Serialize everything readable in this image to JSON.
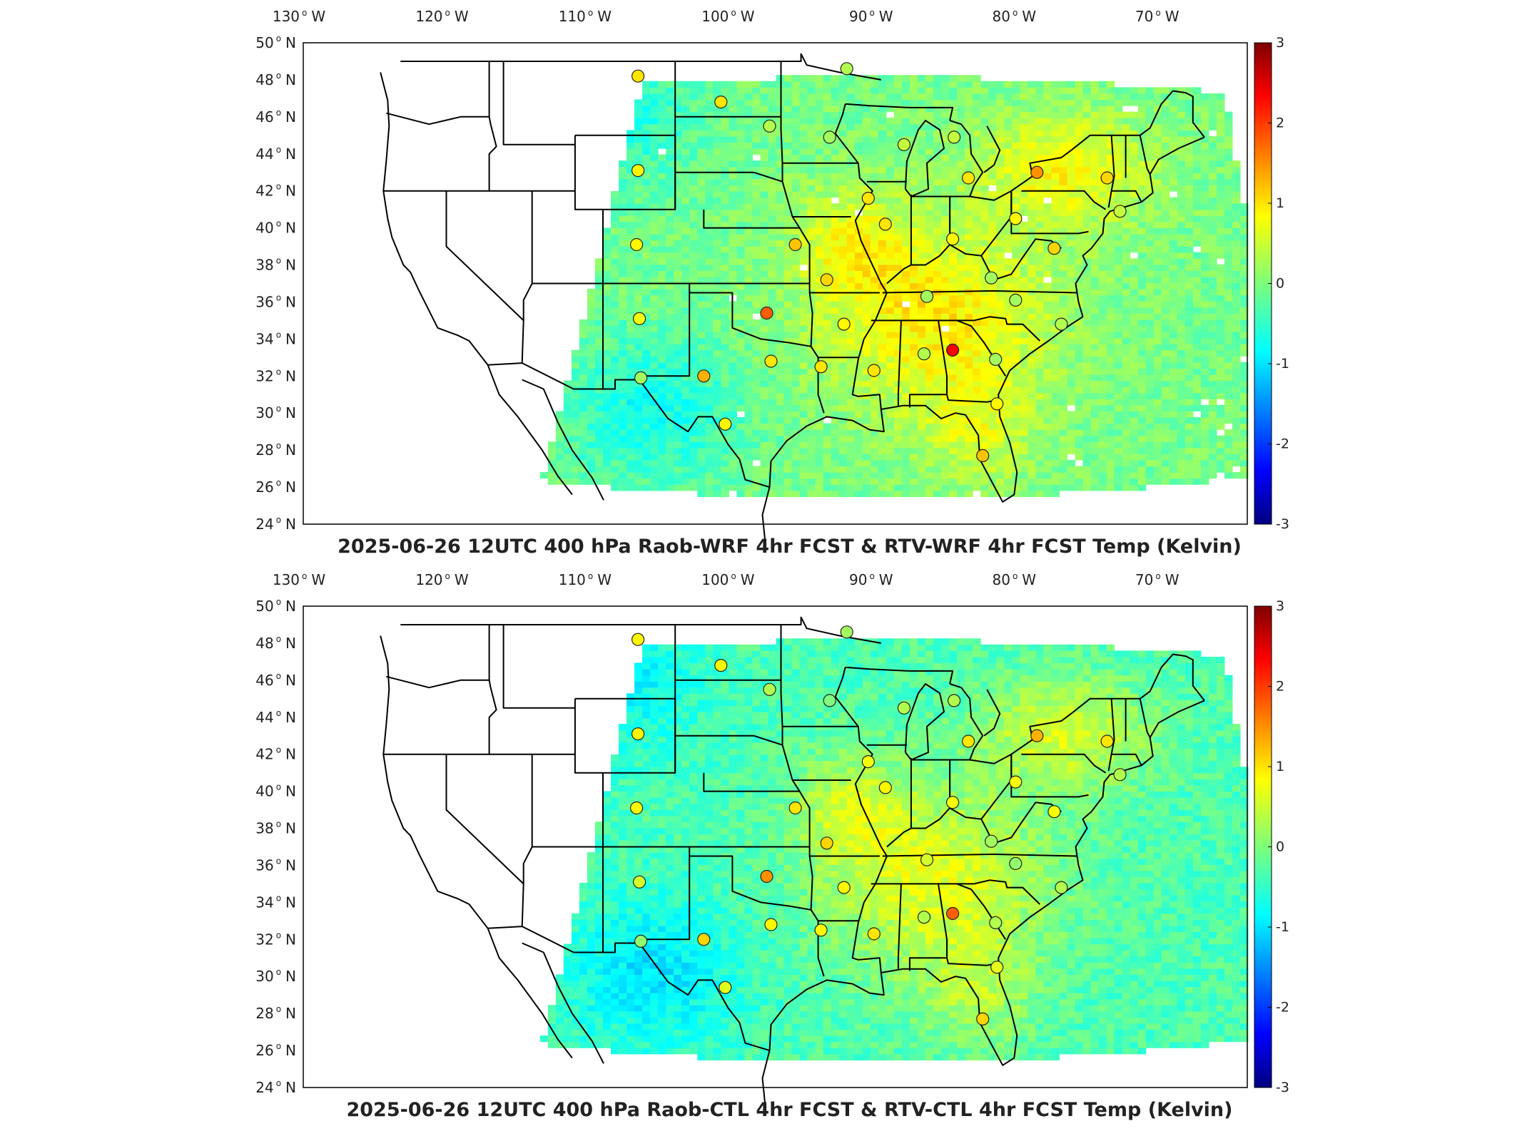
{
  "panels": [
    {
      "id": "top",
      "title": "2025-06-26 12UTC 400 hPa Raob-WRF 4hr FCST & RTV-WRF 4hr FCST Temp (Kelvin)",
      "pattern_bias": 0.25,
      "stations": [
        {
          "lon": -106.6,
          "lat": 48.2,
          "v": 0.9
        },
        {
          "lon": -100.8,
          "lat": 46.8,
          "v": 0.9
        },
        {
          "lon": -97.4,
          "lat": 45.5,
          "v": 0.3
        },
        {
          "lon": -93.2,
          "lat": 44.9,
          "v": 0.2
        },
        {
          "lon": -92.0,
          "lat": 48.6,
          "v": 0.3
        },
        {
          "lon": -106.6,
          "lat": 43.1,
          "v": 0.8
        },
        {
          "lon": -106.7,
          "lat": 39.1,
          "v": 0.8
        },
        {
          "lon": -106.5,
          "lat": 35.1,
          "v": 0.7
        },
        {
          "lon": -106.4,
          "lat": 31.9,
          "v": 0.2
        },
        {
          "lon": -102.0,
          "lat": 32.0,
          "v": 1.2
        },
        {
          "lon": -97.6,
          "lat": 35.4,
          "v": 1.7
        },
        {
          "lon": -97.3,
          "lat": 32.8,
          "v": 0.9
        },
        {
          "lon": -100.5,
          "lat": 29.4,
          "v": 0.8
        },
        {
          "lon": -95.6,
          "lat": 39.1,
          "v": 1.1
        },
        {
          "lon": -93.4,
          "lat": 37.2,
          "v": 1.0
        },
        {
          "lon": -92.2,
          "lat": 34.8,
          "v": 0.8
        },
        {
          "lon": -93.8,
          "lat": 32.5,
          "v": 0.9
        },
        {
          "lon": -90.1,
          "lat": 32.3,
          "v": 0.9
        },
        {
          "lon": -89.3,
          "lat": 40.2,
          "v": 0.9
        },
        {
          "lon": -90.5,
          "lat": 41.6,
          "v": 0.9
        },
        {
          "lon": -88.0,
          "lat": 44.5,
          "v": 0.4
        },
        {
          "lon": -84.5,
          "lat": 44.9,
          "v": 0.4
        },
        {
          "lon": -83.5,
          "lat": 42.7,
          "v": 0.9
        },
        {
          "lon": -86.6,
          "lat": 33.2,
          "v": 0.3
        },
        {
          "lon": -84.6,
          "lat": 33.4,
          "v": 2.3
        },
        {
          "lon": -86.4,
          "lat": 36.3,
          "v": 0.2
        },
        {
          "lon": -81.9,
          "lat": 37.3,
          "v": 0.2
        },
        {
          "lon": -80.2,
          "lat": 36.1,
          "v": 0.2
        },
        {
          "lon": -81.6,
          "lat": 32.9,
          "v": 0.2
        },
        {
          "lon": -81.5,
          "lat": 30.5,
          "v": 0.8
        },
        {
          "lon": -82.5,
          "lat": 27.7,
          "v": 1.1
        },
        {
          "lon": -77.0,
          "lat": 34.8,
          "v": 0.3
        },
        {
          "lon": -77.5,
          "lat": 38.9,
          "v": 1.0
        },
        {
          "lon": -80.2,
          "lat": 40.5,
          "v": 0.8
        },
        {
          "lon": -78.7,
          "lat": 43.0,
          "v": 1.4
        },
        {
          "lon": -73.8,
          "lat": 42.7,
          "v": 1.0
        },
        {
          "lon": -72.9,
          "lat": 40.9,
          "v": 0.4
        },
        {
          "lon": -84.6,
          "lat": 39.4,
          "v": 0.8
        }
      ]
    },
    {
      "id": "bottom",
      "title": "2025-06-26 12UTC 400 hPa Raob-CTL 4hr FCST & RTV-CTL 4hr FCST Temp (Kelvin)",
      "pattern_bias": 0.0,
      "stations": [
        {
          "lon": -106.6,
          "lat": 48.2,
          "v": 0.8
        },
        {
          "lon": -100.8,
          "lat": 46.8,
          "v": 0.8
        },
        {
          "lon": -97.4,
          "lat": 45.5,
          "v": 0.3
        },
        {
          "lon": -93.2,
          "lat": 44.9,
          "v": 0.0
        },
        {
          "lon": -92.0,
          "lat": 48.6,
          "v": 0.2
        },
        {
          "lon": -106.6,
          "lat": 43.1,
          "v": 0.8
        },
        {
          "lon": -106.7,
          "lat": 39.1,
          "v": 0.8
        },
        {
          "lon": -106.5,
          "lat": 35.1,
          "v": 0.5
        },
        {
          "lon": -106.4,
          "lat": 31.9,
          "v": 0.1
        },
        {
          "lon": -102.0,
          "lat": 32.0,
          "v": 1.0
        },
        {
          "lon": -97.6,
          "lat": 35.4,
          "v": 1.4
        },
        {
          "lon": -97.3,
          "lat": 32.8,
          "v": 0.8
        },
        {
          "lon": -100.5,
          "lat": 29.4,
          "v": 0.6
        },
        {
          "lon": -95.6,
          "lat": 39.1,
          "v": 0.9
        },
        {
          "lon": -93.4,
          "lat": 37.2,
          "v": 1.0
        },
        {
          "lon": -92.2,
          "lat": 34.8,
          "v": 0.8
        },
        {
          "lon": -93.8,
          "lat": 32.5,
          "v": 0.8
        },
        {
          "lon": -90.1,
          "lat": 32.3,
          "v": 0.9
        },
        {
          "lon": -89.3,
          "lat": 40.2,
          "v": 0.8
        },
        {
          "lon": -90.5,
          "lat": 41.6,
          "v": 0.7
        },
        {
          "lon": -88.0,
          "lat": 44.5,
          "v": 0.3
        },
        {
          "lon": -84.5,
          "lat": 44.9,
          "v": 0.3
        },
        {
          "lon": -83.5,
          "lat": 42.7,
          "v": 0.9
        },
        {
          "lon": -86.6,
          "lat": 33.2,
          "v": 0.3
        },
        {
          "lon": -84.6,
          "lat": 33.4,
          "v": 1.7
        },
        {
          "lon": -86.4,
          "lat": 36.3,
          "v": 0.5
        },
        {
          "lon": -81.9,
          "lat": 37.3,
          "v": 0.2
        },
        {
          "lon": -80.2,
          "lat": 36.1,
          "v": 0.1
        },
        {
          "lon": -81.6,
          "lat": 32.9,
          "v": 0.3
        },
        {
          "lon": -81.5,
          "lat": 30.5,
          "v": 0.6
        },
        {
          "lon": -82.5,
          "lat": 27.7,
          "v": 1.0
        },
        {
          "lon": -77.0,
          "lat": 34.8,
          "v": 0.3
        },
        {
          "lon": -77.5,
          "lat": 38.9,
          "v": 0.7
        },
        {
          "lon": -80.2,
          "lat": 40.5,
          "v": 0.7
        },
        {
          "lon": -78.7,
          "lat": 43.0,
          "v": 1.2
        },
        {
          "lon": -73.8,
          "lat": 42.7,
          "v": 0.9
        },
        {
          "lon": -72.9,
          "lat": 40.9,
          "v": 0.3
        },
        {
          "lon": -84.6,
          "lat": 39.4,
          "v": 0.7
        }
      ]
    }
  ],
  "lon_ticks": [
    {
      "lon": -130,
      "label": "130",
      "hemi": "W"
    },
    {
      "lon": -120,
      "label": "120",
      "hemi": "W"
    },
    {
      "lon": -110,
      "label": "110",
      "hemi": "W"
    },
    {
      "lon": -100,
      "label": "100",
      "hemi": "W"
    },
    {
      "lon": -90,
      "label": "90",
      "hemi": "W"
    },
    {
      "lon": -80,
      "label": "80",
      "hemi": "W"
    },
    {
      "lon": -70,
      "label": "70",
      "hemi": "W"
    }
  ],
  "lat_ticks": [
    {
      "lat": 50,
      "label": "50",
      "hemi": "N"
    },
    {
      "lat": 48,
      "label": "48",
      "hemi": "N"
    },
    {
      "lat": 46,
      "label": "46",
      "hemi": "N"
    },
    {
      "lat": 44,
      "label": "44",
      "hemi": "N"
    },
    {
      "lat": 42,
      "label": "42",
      "hemi": "N"
    },
    {
      "lat": 40,
      "label": "40",
      "hemi": "N"
    },
    {
      "lat": 38,
      "label": "38",
      "hemi": "N"
    },
    {
      "lat": 36,
      "label": "36",
      "hemi": "N"
    },
    {
      "lat": 34,
      "label": "34",
      "hemi": "N"
    },
    {
      "lat": 32,
      "label": "32",
      "hemi": "N"
    },
    {
      "lat": 30,
      "label": "30",
      "hemi": "N"
    },
    {
      "lat": 28,
      "label": "28",
      "hemi": "N"
    },
    {
      "lat": 26,
      "label": "26",
      "hemi": "N"
    },
    {
      "lat": 24,
      "label": "24",
      "hemi": "N"
    }
  ],
  "map_extent": {
    "lon_min": -130,
    "lon_max": -64,
    "lat_min": 24,
    "lat_max": 50
  },
  "colorbar": {
    "min": -3,
    "max": 3,
    "ticks": [
      "3",
      "2",
      "1",
      "0",
      "-1",
      "-2",
      "-3"
    ],
    "colormap": "jet"
  }
}
